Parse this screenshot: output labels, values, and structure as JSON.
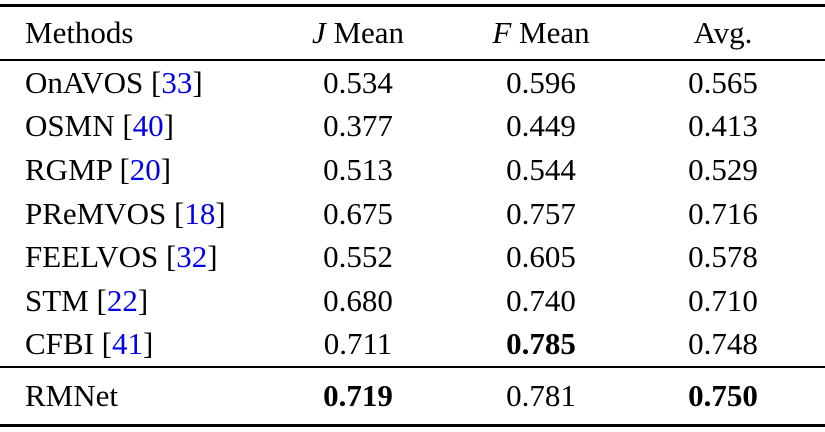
{
  "colors": {
    "background": "#ffffff",
    "text": "#000000",
    "citation_link": "#0000EE",
    "rule": "#000000"
  },
  "table": {
    "columns": [
      {
        "label": "Methods"
      },
      {
        "symbol": "J",
        "symbol_style": "mathcal-script",
        "label": "Mean"
      },
      {
        "symbol": "F",
        "symbol_style": "mathcal-script",
        "label": "Mean"
      },
      {
        "label": "Avg."
      }
    ],
    "citation_brackets": {
      "open": "[",
      "close": "]"
    },
    "rows": [
      {
        "method": "OnAVOS",
        "cite": "33",
        "j_mean": "0.534",
        "f_mean": "0.596",
        "avg": "0.565",
        "bold": []
      },
      {
        "method": "OSMN",
        "cite": "40",
        "j_mean": "0.377",
        "f_mean": "0.449",
        "avg": "0.413",
        "bold": []
      },
      {
        "method": "RGMP",
        "cite": "20",
        "j_mean": "0.513",
        "f_mean": "0.544",
        "avg": "0.529",
        "bold": []
      },
      {
        "method": "PReMVOS",
        "cite": "18",
        "j_mean": "0.675",
        "f_mean": "0.757",
        "avg": "0.716",
        "bold": []
      },
      {
        "method": "FEELVOS",
        "cite": "32",
        "j_mean": "0.552",
        "f_mean": "0.605",
        "avg": "0.578",
        "bold": []
      },
      {
        "method": "STM",
        "cite": "22",
        "j_mean": "0.680",
        "f_mean": "0.740",
        "avg": "0.710",
        "bold": []
      },
      {
        "method": "CFBI",
        "cite": "41",
        "j_mean": "0.711",
        "f_mean": "0.785",
        "avg": "0.748",
        "bold": [
          "f_mean"
        ]
      }
    ],
    "footer_row": {
      "method": "RMNet",
      "cite": null,
      "j_mean": "0.719",
      "f_mean": "0.781",
      "avg": "0.750",
      "bold": [
        "j_mean",
        "avg"
      ]
    }
  }
}
